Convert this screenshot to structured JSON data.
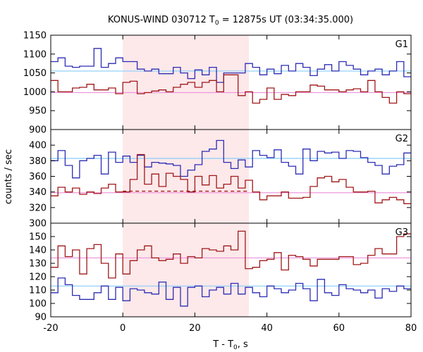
{
  "chart_data": {
    "type": "line",
    "title": {
      "prefix": "KONUS-WIND 030712 T",
      "sub": "0",
      "suffix": " = 12875s UT (03:34:35.000)"
    },
    "xlabel": {
      "prefix": "T - T",
      "sub": "0",
      "suffix": ", s"
    },
    "ylabel": "counts / sec",
    "xlim": [
      -20,
      80
    ],
    "xticks": [
      -20,
      0,
      20,
      40,
      60,
      80
    ],
    "highlight": {
      "from": 0,
      "to": 35,
      "color": "#fde8ea"
    },
    "bin_start": -20,
    "bin_width": 2,
    "colors": {
      "blue_step": "#2c2cb4",
      "red_step": "#a01818",
      "blue_bg": "#87cefa",
      "red_bg": "#ee99dd",
      "fit": "#a01818"
    },
    "panels": [
      {
        "label": "G1",
        "ylim": [
          900,
          1150
        ],
        "yticks": [
          900,
          950,
          1000,
          1050,
          1100,
          1150
        ],
        "background_blue": 1055,
        "background_red": 998,
        "blue": [
          1080,
          1090,
          1068,
          1065,
          1068,
          1068,
          1115,
          1065,
          1075,
          1090,
          1080,
          1080,
          1060,
          1055,
          1060,
          1048,
          1048,
          1065,
          1050,
          1035,
          1058,
          1045,
          1065,
          1025,
          1050,
          1050,
          1050,
          1075,
          1065,
          1045,
          1060,
          1048,
          1070,
          1055,
          1075,
          1065,
          1043,
          1060,
          1072,
          1055,
          1080,
          1070,
          1060,
          1045,
          1055,
          1060,
          1045,
          1055,
          1080,
          1040
        ],
        "red": [
          1030,
          1000,
          1000,
          1010,
          1012,
          1020,
          1005,
          1005,
          1010,
          995,
          1025,
          1028,
          995,
          998,
          1002,
          1005,
          1000,
          1012,
          1020,
          1025,
          1012,
          1025,
          1030,
          1000,
          1045,
          1045,
          990,
          1000,
          970,
          980,
          1010,
          980,
          993,
          990,
          1000,
          1000,
          1018,
          1015,
          1005,
          1005,
          1000,
          1005,
          1008,
          1000,
          1030,
          1000,
          985,
          970,
          1000,
          995
        ]
      },
      {
        "label": "G2",
        "ylim": [
          300,
          420
        ],
        "yticks": [
          300,
          320,
          340,
          360,
          380,
          400
        ],
        "background_blue": 383,
        "background_red": 339,
        "fit_level": 341,
        "fit_range": [
          0,
          35
        ],
        "blue": [
          380,
          393,
          374,
          358,
          380,
          383,
          387,
          363,
          391,
          378,
          386,
          378,
          387,
          372,
          378,
          377,
          376,
          374,
          360,
          368,
          375,
          392,
          395,
          406,
          378,
          370,
          381,
          372,
          393,
          387,
          384,
          394,
          378,
          373,
          363,
          395,
          380,
          392,
          390,
          391,
          383,
          393,
          392,
          384,
          378,
          374,
          363,
          373,
          375,
          390
        ],
        "red": [
          335,
          346,
          340,
          345,
          337,
          340,
          338,
          345,
          350,
          340,
          340,
          356,
          388,
          350,
          363,
          347,
          364,
          360,
          356,
          340,
          360,
          349,
          361,
          345,
          350,
          360,
          345,
          355,
          340,
          330,
          335,
          335,
          340,
          332,
          332,
          333,
          347,
          358,
          360,
          353,
          356,
          346,
          340,
          340,
          341,
          326,
          330,
          333,
          330,
          325
        ]
      },
      {
        "label": "G3",
        "ylim": [
          90,
          160
        ],
        "yticks": [
          90,
          100,
          110,
          120,
          130,
          140,
          150
        ],
        "background_blue": 113,
        "background_red": 134,
        "blue": [
          108,
          119,
          114,
          106,
          103,
          103,
          108,
          113,
          103,
          112,
          102,
          111,
          110,
          108,
          107,
          116,
          103,
          112,
          98,
          112,
          113,
          105,
          110,
          112,
          107,
          115,
          107,
          112,
          108,
          105,
          113,
          111,
          108,
          110,
          115,
          111,
          102,
          118,
          108,
          106,
          114,
          111,
          110,
          108,
          110,
          104,
          111,
          109,
          113,
          111
        ],
        "red": [
          127,
          143,
          135,
          140,
          122,
          141,
          144,
          130,
          119,
          137,
          122,
          132,
          140,
          143,
          134,
          132,
          133,
          137,
          130,
          135,
          134,
          141,
          140,
          139,
          143,
          140,
          154,
          126,
          127,
          132,
          133,
          138,
          125,
          136,
          135,
          133,
          128,
          133,
          133,
          133,
          135,
          135,
          129,
          130,
          136,
          141,
          137,
          137,
          150,
          152
        ]
      }
    ]
  }
}
